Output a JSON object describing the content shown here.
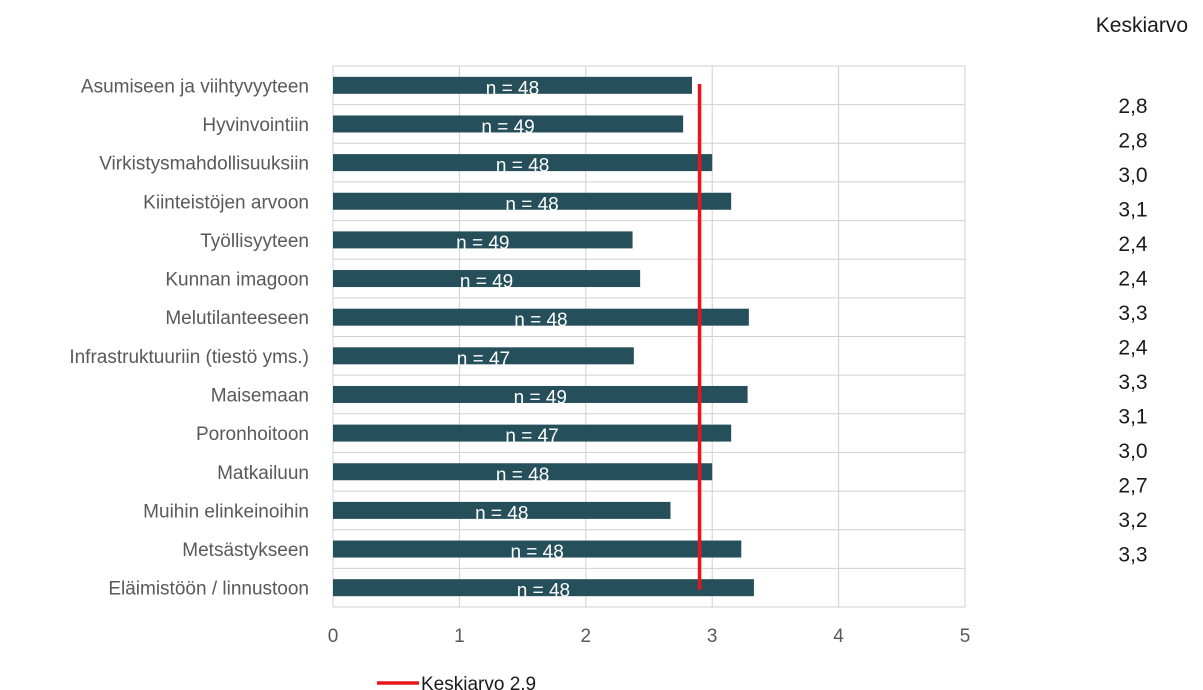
{
  "chart_data": {
    "type": "bar",
    "orientation": "horizontal",
    "categories": [
      "Asumiseen ja viihtyvyyteen",
      "Hyvinvointiin",
      "Virkistysmahdollisuuksiin",
      "Kiinteistöjen arvoon",
      "Työllisyyteen",
      "Kunnan imagoon",
      "Melutilanteeseen",
      "Infrastruktuuriin (tiestö yms.)",
      "Maisemaan",
      "Poronhoitoon",
      "Matkailuun",
      "Muihin elinkeinoihin",
      "Metsästykseen",
      "Eläimistöön / linnustoon"
    ],
    "values": [
      2.84,
      2.77,
      3.0,
      3.15,
      2.37,
      2.43,
      3.29,
      2.38,
      3.28,
      3.15,
      3.0,
      2.67,
      3.23,
      3.33
    ],
    "n_labels": [
      "n = 48",
      "n = 49",
      "n = 48",
      "n = 48",
      "n = 49",
      "n = 49",
      "n = 48",
      "n = 47",
      "n = 49",
      "n = 47",
      "n = 48",
      "n = 48",
      "n = 48",
      "n = 48"
    ],
    "mean_column_header": "Keskiarvo",
    "mean_labels": [
      "2,8",
      "2,8",
      "3,0",
      "3,1",
      "2,4",
      "2,4",
      "3,3",
      "2,4",
      "3,3",
      "3,1",
      "3,0",
      "2,7",
      "3,2",
      "3,3"
    ],
    "xlim": [
      0,
      5
    ],
    "xticks": [
      0,
      1,
      2,
      3,
      4,
      5
    ],
    "xtick_labels": [
      "0",
      "1",
      "2",
      "3",
      "4",
      "5"
    ],
    "grid": true,
    "reference_line": {
      "value": 2.9,
      "label": "Keskiarvo 2,9",
      "color": "#e8151b"
    },
    "bar_color": "#254f5a",
    "legend_position": "bottom"
  }
}
